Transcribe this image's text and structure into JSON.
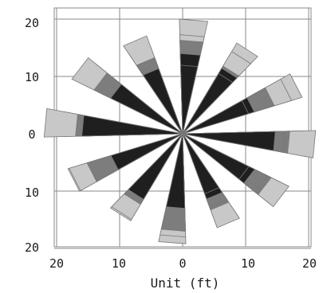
{
  "chart_data": {
    "type": "rose",
    "xlabel": "Unit (ft)",
    "ylabel": "",
    "title": "",
    "x_ticks": [
      "20",
      "10",
      "0",
      "10",
      "20"
    ],
    "y_ticks": [
      "20",
      "10",
      "0",
      "10",
      "20"
    ],
    "xlim": [
      -20,
      20
    ],
    "ylim": [
      -20,
      20
    ],
    "grid": true,
    "directions_deg": [
      5,
      35,
      65,
      95,
      125,
      155,
      185,
      215,
      245,
      275,
      305,
      335
    ],
    "series": [
      {
        "color": "#c8c8c8",
        "values": [
          20,
          18,
          20,
          20,
          19,
          17,
          18,
          17,
          19,
          22,
          20,
          18
        ]
      },
      {
        "color": "#7d7d7d",
        "values": [
          14,
          12,
          15,
          17,
          16,
          14,
          17,
          14,
          16,
          17,
          16,
          14
        ]
      },
      {
        "color": "#1f1f1f",
        "values": [
          14,
          13,
          12,
          12,
          13,
          12,
          13,
          13,
          12,
          16,
          13,
          12
        ]
      }
    ]
  }
}
